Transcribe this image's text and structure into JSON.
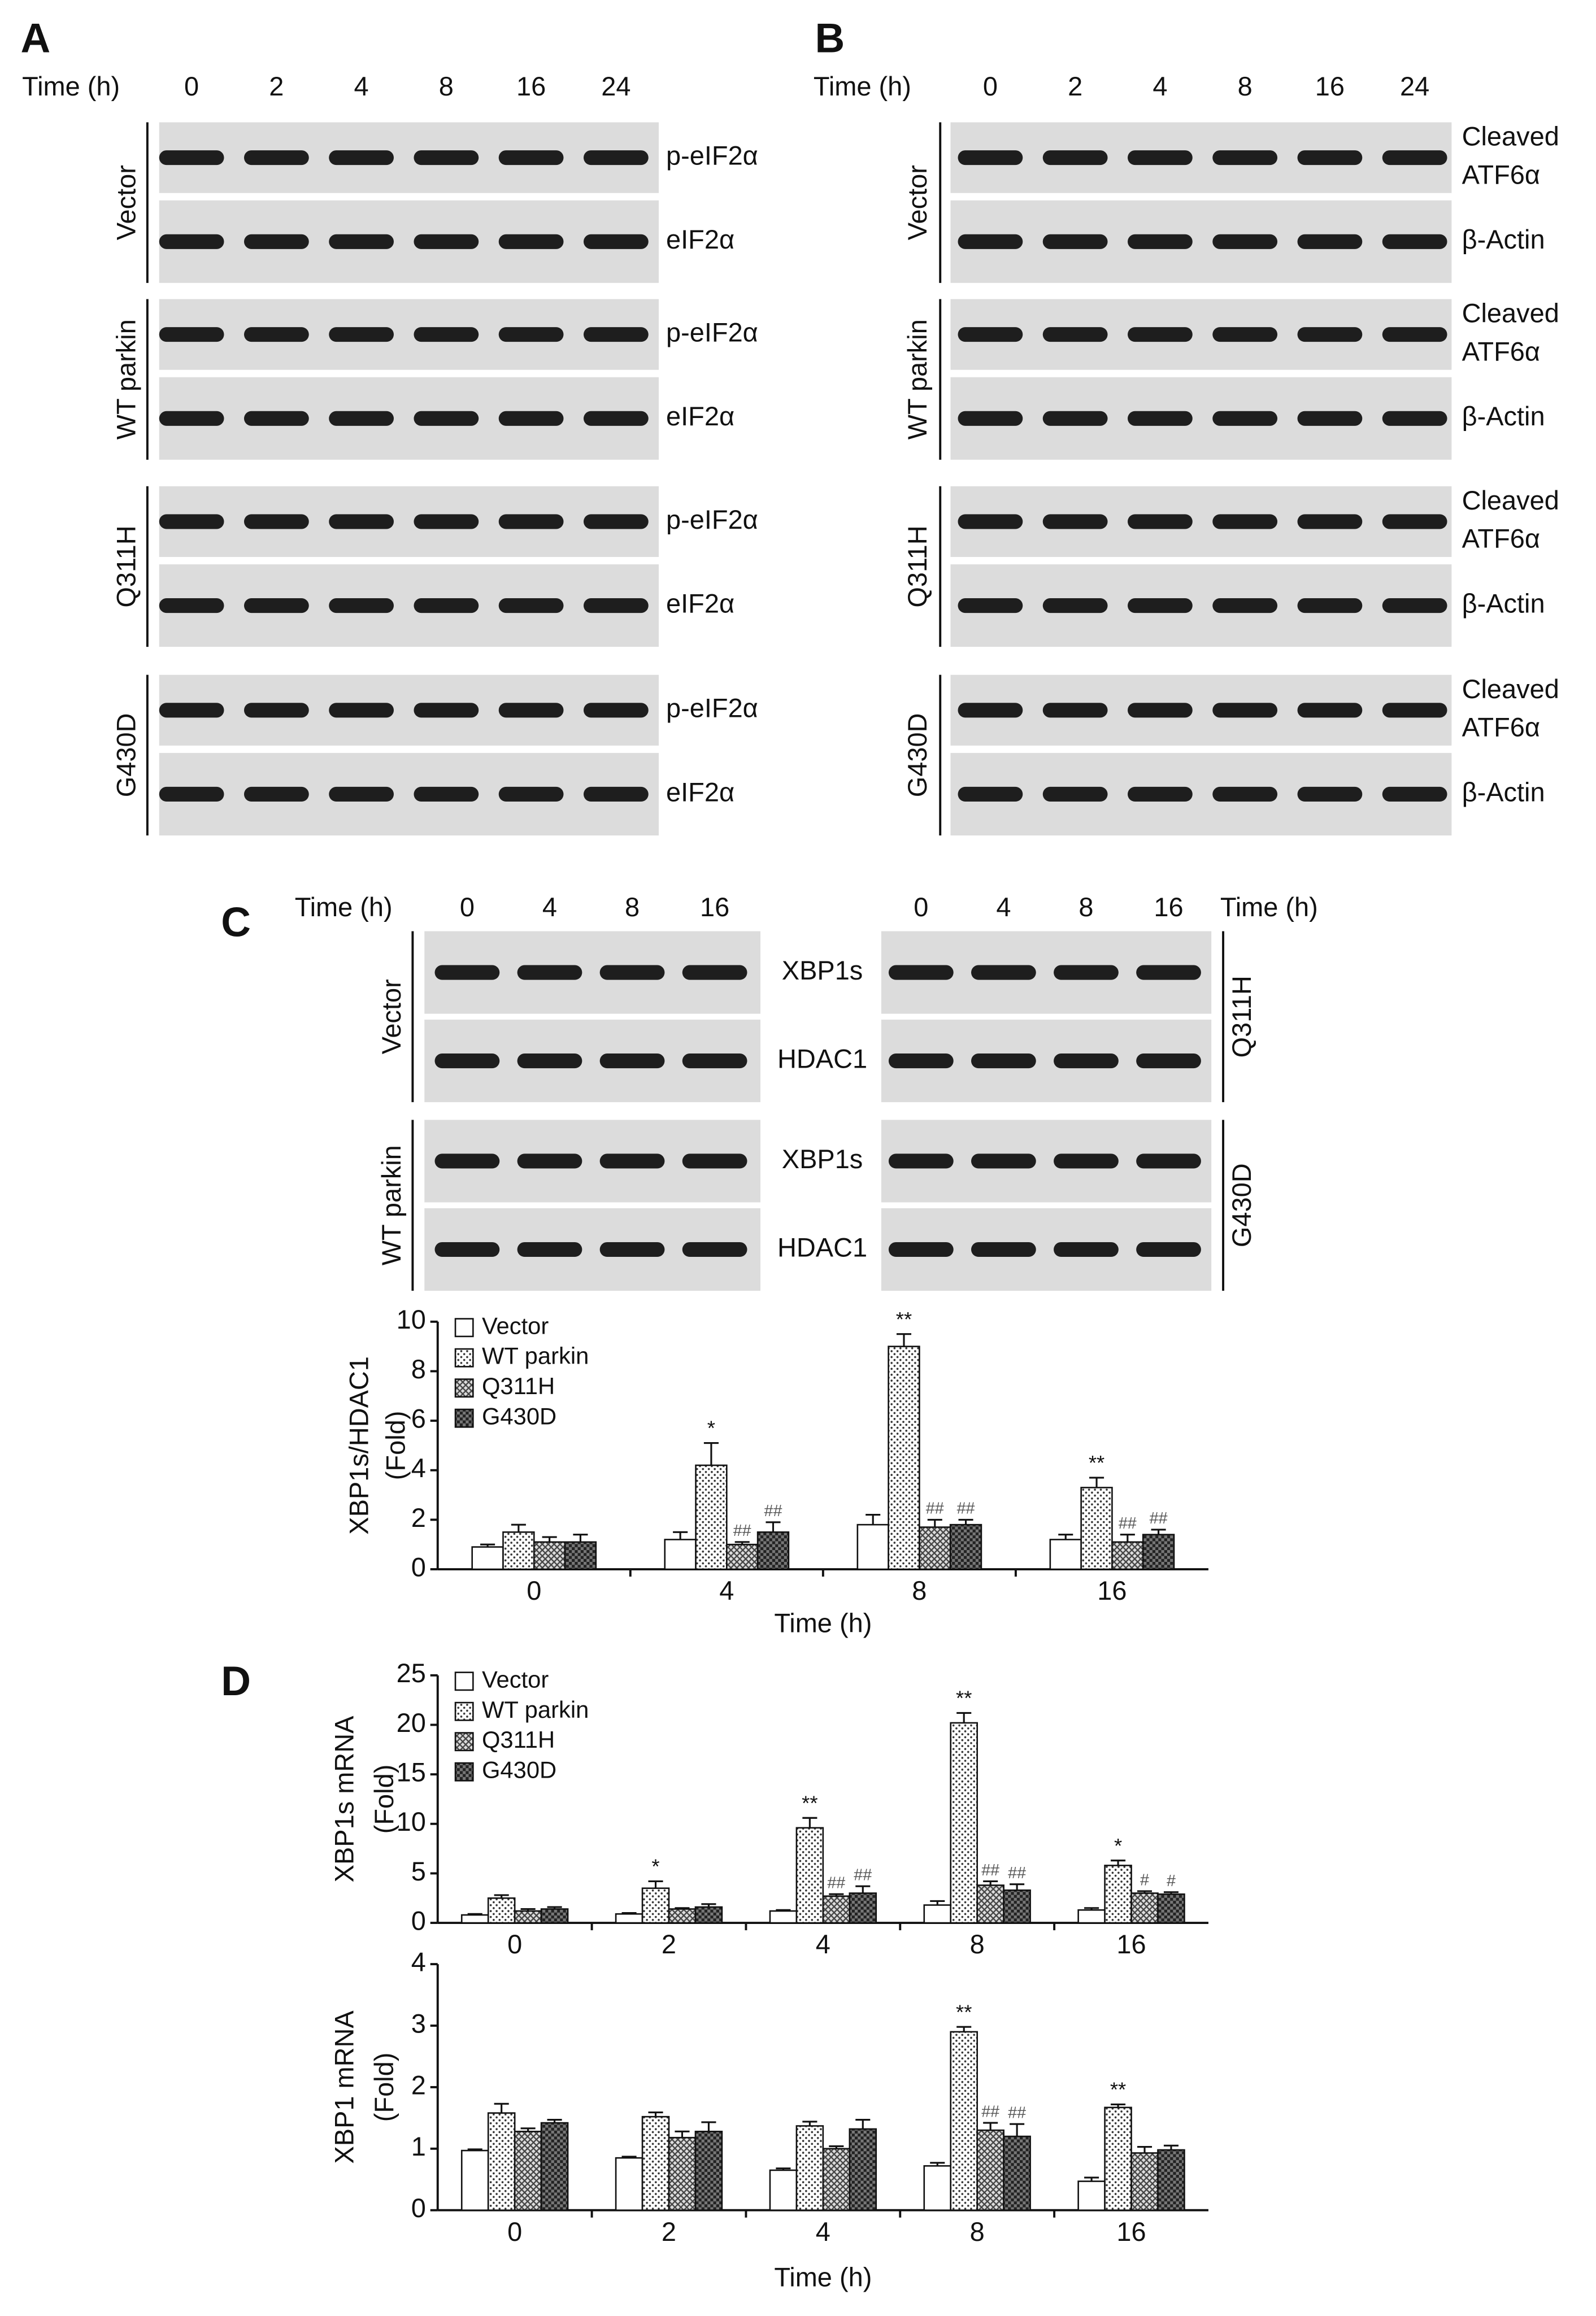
{
  "blot_A": {
    "label": "A",
    "time_label": "Time (h)",
    "times": [
      "0",
      "2",
      "4",
      "8",
      "16",
      "24"
    ],
    "groups": [
      "Vector",
      "WT parkin",
      "Q311H",
      "G430D"
    ],
    "bands": [
      [
        "p-eIF2α"
      ],
      [
        "eIF2α"
      ]
    ]
  },
  "blot_B": {
    "label": "B",
    "time_label": "Time (h)",
    "times": [
      "0",
      "2",
      "4",
      "8",
      "16",
      "24"
    ],
    "groups": [
      "Vector",
      "WT parkin",
      "Q311H",
      "G430D"
    ],
    "bands": [
      [
        "Cleaved",
        "ATF6α"
      ],
      [
        "β-Actin"
      ]
    ]
  },
  "blot_C": {
    "label": "C",
    "time_label": "Time (h)",
    "times_left": [
      "0",
      "4",
      "8",
      "16"
    ],
    "times_right": [
      "0",
      "4",
      "8",
      "16"
    ],
    "groups_left": [
      "Vector",
      "WT parkin"
    ],
    "groups_right": [
      "Q311H",
      "G430D"
    ],
    "bands": [
      "XBP1s",
      "HDAC1"
    ]
  },
  "panel_D_label": "D",
  "chart_data": [
    {
      "type": "bar",
      "ylabel": [
        "XBP1s/HDAC1",
        "(Fold)"
      ],
      "xlabel": "Time (h)",
      "categories": [
        "0",
        "4",
        "8",
        "16"
      ],
      "ylim": [
        0,
        10
      ],
      "yticks": [
        0,
        2,
        4,
        6,
        8,
        10
      ],
      "legend": "upper left",
      "series": [
        {
          "name": "Vector",
          "pattern": "white",
          "values": [
            0.9,
            1.2,
            1.8,
            1.2
          ],
          "errors": [
            0.1,
            0.3,
            0.4,
            0.2
          ],
          "annotations": [
            null,
            null,
            null,
            null
          ]
        },
        {
          "name": "WT parkin",
          "pattern": "dots",
          "values": [
            1.5,
            4.2,
            9.0,
            3.3
          ],
          "errors": [
            0.3,
            0.9,
            0.5,
            0.4
          ],
          "annotations": [
            null,
            "*",
            "**",
            "**"
          ]
        },
        {
          "name": "Q311H",
          "pattern": "cross",
          "values": [
            1.1,
            1.0,
            1.7,
            1.1
          ],
          "errors": [
            0.2,
            0.1,
            0.3,
            0.3
          ],
          "annotations": [
            null,
            "##",
            "##",
            "##"
          ]
        },
        {
          "name": "G430D",
          "pattern": "dark",
          "values": [
            1.1,
            1.5,
            1.8,
            1.4
          ],
          "errors": [
            0.3,
            0.4,
            0.2,
            0.2
          ],
          "annotations": [
            null,
            "##",
            "##",
            "##"
          ]
        }
      ]
    },
    {
      "type": "bar",
      "ylabel": [
        "XBP1s mRNA",
        "(Fold)"
      ],
      "categories": [
        "0",
        "2",
        "4",
        "8",
        "16"
      ],
      "ylim": [
        0,
        25
      ],
      "yticks": [
        0,
        5,
        10,
        15,
        20,
        25
      ],
      "legend": "upper left",
      "series": [
        {
          "name": "Vector",
          "pattern": "white",
          "values": [
            0.8,
            0.9,
            1.2,
            1.8,
            1.3
          ],
          "errors": [
            0.1,
            0.1,
            0.1,
            0.4,
            0.2
          ],
          "annotations": [
            null,
            null,
            null,
            null,
            null
          ]
        },
        {
          "name": "WT parkin",
          "pattern": "dots",
          "values": [
            2.5,
            3.5,
            9.6,
            20.2,
            5.8
          ],
          "errors": [
            0.3,
            0.7,
            1.0,
            1.0,
            0.5
          ],
          "annotations": [
            null,
            "*",
            "**",
            "**",
            "*"
          ]
        },
        {
          "name": "Q311H",
          "pattern": "cross",
          "values": [
            1.2,
            1.4,
            2.7,
            3.8,
            3.0
          ],
          "errors": [
            0.2,
            0.1,
            0.2,
            0.4,
            0.2
          ],
          "annotations": [
            null,
            null,
            "##",
            "##",
            "#"
          ]
        },
        {
          "name": "G430D",
          "pattern": "dark",
          "values": [
            1.4,
            1.6,
            3.0,
            3.3,
            2.9
          ],
          "errors": [
            0.2,
            0.3,
            0.7,
            0.6,
            0.2
          ],
          "annotations": [
            null,
            null,
            "##",
            "##",
            "#"
          ]
        }
      ]
    },
    {
      "type": "bar",
      "ylabel": [
        "XBP1 mRNA",
        "(Fold)"
      ],
      "xlabel": "Time (h)",
      "categories": [
        "0",
        "2",
        "4",
        "8",
        "16"
      ],
      "ylim": [
        0,
        4
      ],
      "yticks": [
        0,
        1,
        2,
        3,
        4
      ],
      "series": [
        {
          "pattern": "white",
          "values": [
            0.97,
            0.85,
            0.65,
            0.72,
            0.47
          ],
          "errors": [
            0.02,
            0.02,
            0.03,
            0.05,
            0.06
          ],
          "annotations": [
            null,
            null,
            null,
            null,
            null
          ]
        },
        {
          "pattern": "dots",
          "values": [
            1.58,
            1.52,
            1.37,
            2.9,
            1.67
          ],
          "errors": [
            0.15,
            0.07,
            0.07,
            0.08,
            0.05
          ],
          "annotations": [
            null,
            null,
            null,
            "**",
            "**"
          ]
        },
        {
          "pattern": "cross",
          "values": [
            1.28,
            1.18,
            1.0,
            1.3,
            0.93
          ],
          "errors": [
            0.05,
            0.1,
            0.04,
            0.12,
            0.1
          ],
          "annotations": [
            null,
            null,
            null,
            "##",
            null
          ]
        },
        {
          "pattern": "dark",
          "values": [
            1.42,
            1.28,
            1.32,
            1.2,
            0.98
          ],
          "errors": [
            0.05,
            0.15,
            0.15,
            0.2,
            0.07
          ],
          "annotations": [
            null,
            null,
            null,
            "##",
            null
          ]
        }
      ]
    }
  ]
}
